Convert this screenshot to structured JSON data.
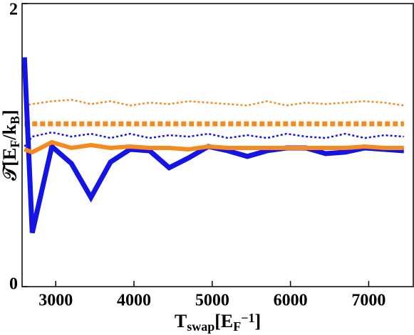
{
  "chart_data": {
    "type": "line",
    "xlabel_parts": [
      "T",
      "swap",
      "[E",
      "F",
      "−1",
      "]"
    ],
    "ylabel_parts": [
      "𝒯[E",
      "F",
      "/k",
      "B",
      "]"
    ],
    "x": [
      2600,
      2700,
      2950,
      3200,
      3450,
      3700,
      3950,
      4200,
      4450,
      4700,
      4950,
      5200,
      5450,
      5700,
      5950,
      6200,
      6450,
      6700,
      6950,
      7200,
      7450
    ],
    "series": [
      {
        "color": "#f58a1f",
        "dash": "dotted",
        "linewidth": 2.5,
        "values": [
          1.28,
          1.29,
          1.31,
          1.32,
          1.29,
          1.31,
          1.28,
          1.3,
          1.29,
          1.31,
          1.3,
          1.29,
          1.28,
          1.31,
          1.28,
          1.3,
          1.29,
          1.3,
          1.31,
          1.3,
          1.28
        ]
      },
      {
        "color": "#f58a1f",
        "dash": "dashed",
        "linewidth": 7,
        "values": [
          1.15,
          1.15,
          1.15,
          1.15,
          1.15,
          1.15,
          1.15,
          1.15,
          1.15,
          1.15,
          1.15,
          1.15,
          1.15,
          1.15,
          1.15,
          1.15,
          1.15,
          1.15,
          1.15,
          1.15,
          1.15
        ]
      },
      {
        "color": "#1414e6",
        "dash": "dotted",
        "linewidth": 2.5,
        "values": [
          0.99,
          1.06,
          1.09,
          1.06,
          1.08,
          1.05,
          1.08,
          1.05,
          1.07,
          1.06,
          1.08,
          1.05,
          1.07,
          1.05,
          1.08,
          1.06,
          1.05,
          1.08,
          1.05,
          1.07,
          1.06
        ]
      },
      {
        "color": "#1414e6",
        "dash": "solid",
        "linewidth": 7,
        "values": [
          1.62,
          0.38,
          0.99,
          0.87,
          0.63,
          0.88,
          0.97,
          0.96,
          0.84,
          0.91,
          0.99,
          0.96,
          0.92,
          0.96,
          0.98,
          0.98,
          0.94,
          0.95,
          0.98,
          0.97,
          0.96
        ]
      },
      {
        "color": "#f58a1f",
        "dash": "solid",
        "linewidth": 6,
        "values": [
          0.97,
          0.95,
          1.02,
          0.98,
          1.0,
          0.98,
          0.99,
          0.98,
          0.98,
          0.97,
          0.99,
          0.98,
          0.98,
          0.98,
          0.98,
          0.98,
          0.98,
          0.98,
          0.99,
          0.98,
          0.98
        ]
      }
    ],
    "xlim": [
      2570,
      7570
    ],
    "ylim": [
      0,
      2
    ],
    "xticks": [
      3000,
      4000,
      5000,
      6000,
      7000
    ],
    "yticks": [
      0,
      2
    ]
  }
}
